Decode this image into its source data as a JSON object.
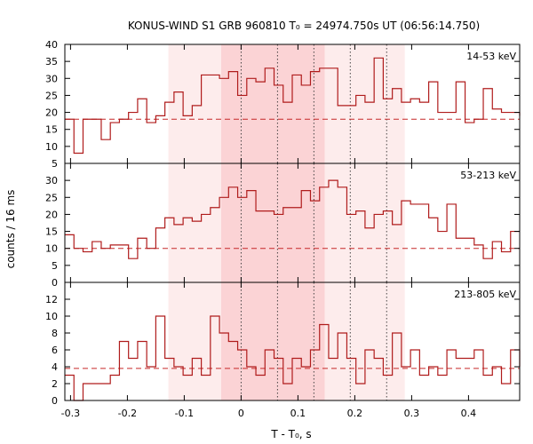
{
  "chart_data": {
    "type": "histogram",
    "title": "KONUS-WIND S1 GRB 960810 T₀ = 24974.750s UT (06:56:14.750)",
    "xlabel": "T - T₀, s",
    "ylabel": "counts / 16 ms",
    "xlim": [
      -0.31,
      0.49
    ],
    "x_ticks": [
      -0.3,
      -0.2,
      -0.1,
      0,
      0.1,
      0.2,
      0.3,
      0.4
    ],
    "x_tick_labels": [
      "-0.3",
      "-0.2",
      "-0.1",
      "0",
      "0.1",
      "0.2",
      "0.3",
      "0.4"
    ],
    "bin_width": 0.016,
    "first_bin_start": -0.31,
    "shaded_intervals": [
      {
        "x0": -0.128,
        "x1": 0.288,
        "level": "light"
      },
      {
        "x0": -0.035,
        "x1": 0.147,
        "level": "medium"
      }
    ],
    "vertical_markers": [
      0,
      0.064,
      0.128,
      0.192,
      0.256
    ],
    "colors": {
      "step_line": "#b01c1c",
      "background_line": "#c62828",
      "band_light": "#fdecec",
      "band_medium": "#fbd3d5",
      "frame": "#000000",
      "marker": "#333333"
    },
    "panels": [
      {
        "name": "14-53 keV",
        "ylim": [
          5,
          40
        ],
        "y_ticks": [
          5,
          10,
          15,
          20,
          25,
          30,
          35,
          40
        ],
        "background": 18,
        "values": [
          18,
          8,
          18,
          18,
          12,
          17,
          18,
          20,
          24,
          17,
          19,
          23,
          26,
          19,
          22,
          31,
          31,
          30,
          32,
          25,
          30,
          29,
          33,
          28,
          23,
          31,
          28,
          32,
          33,
          33,
          22,
          22,
          25,
          23,
          36,
          24,
          27,
          23,
          24,
          23,
          29,
          20,
          20,
          29,
          17,
          18,
          27,
          21,
          20,
          20,
          19
        ]
      },
      {
        "name": "53-213 keV",
        "ylim": [
          0,
          35
        ],
        "y_ticks": [
          0,
          5,
          10,
          15,
          20,
          25,
          30
        ],
        "background": 10,
        "values": [
          14,
          10,
          9,
          12,
          10,
          11,
          11,
          7,
          13,
          10,
          16,
          19,
          17,
          19,
          18,
          20,
          22,
          25,
          28,
          25,
          27,
          21,
          21,
          20,
          22,
          22,
          27,
          24,
          28,
          30,
          28,
          20,
          21,
          16,
          20,
          21,
          17,
          24,
          23,
          23,
          19,
          15,
          23,
          13,
          13,
          11,
          7,
          12,
          9,
          15,
          15
        ]
      },
      {
        "name": "213-805 keV",
        "ylim": [
          0,
          14
        ],
        "y_ticks": [
          0,
          2,
          4,
          6,
          8,
          10,
          12
        ],
        "background": 3.8,
        "values": [
          3,
          0,
          2,
          2,
          2,
          3,
          7,
          5,
          7,
          4,
          10,
          5,
          4,
          3,
          5,
          3,
          10,
          8,
          7,
          6,
          4,
          3,
          6,
          5,
          2,
          5,
          4,
          6,
          9,
          5,
          8,
          5,
          2,
          6,
          5,
          3,
          8,
          4,
          6,
          3,
          4,
          3,
          6,
          5,
          5,
          6,
          3,
          4,
          2,
          6,
          4
        ]
      }
    ]
  }
}
